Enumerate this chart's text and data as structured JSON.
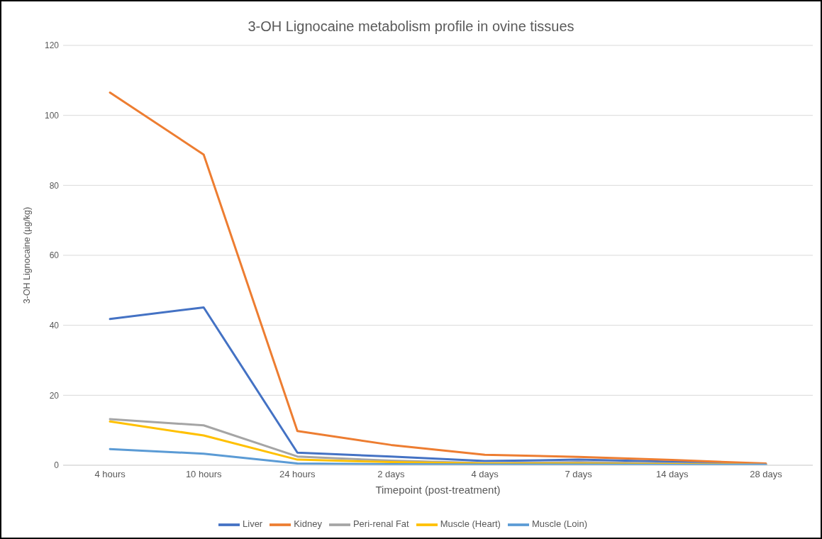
{
  "chart_data": {
    "type": "line",
    "title": "3-OH Lignocaine metabolism profile in ovine tissues",
    "xlabel": "Timepoint (post-treatment)",
    "ylabel": "3-OH Lignocaine (µg/kg)",
    "categories": [
      "4 hours",
      "10 hours",
      "24 hours",
      "2 days",
      "4 days",
      "7 days",
      "14 days",
      "28 days"
    ],
    "series": [
      {
        "name": "Liver",
        "color": "#4472c4",
        "values": [
          41.8,
          45.1,
          3.6,
          2.5,
          1.2,
          1.6,
          1.0,
          0.3
        ]
      },
      {
        "name": "Kidney",
        "color": "#ed7d31",
        "values": [
          106.5,
          88.8,
          9.8,
          5.8,
          3.0,
          2.4,
          1.5,
          0.5
        ]
      },
      {
        "name": "Peri-renal Fat",
        "color": "#a5a5a5",
        "values": [
          13.2,
          11.4,
          2.5,
          1.3,
          0.6,
          0.9,
          0.5,
          0.2
        ]
      },
      {
        "name": "Muscle (Heart)",
        "color": "#ffc000",
        "values": [
          12.5,
          8.5,
          1.6,
          0.9,
          0.5,
          0.5,
          0.3,
          0.1
        ]
      },
      {
        "name": "Muscle (Loin)",
        "color": "#5b9bd5",
        "values": [
          4.6,
          3.3,
          0.5,
          0.3,
          0.2,
          0.2,
          0.1,
          0.1
        ]
      }
    ],
    "ylim": [
      0,
      120
    ],
    "yticks": [
      0,
      20,
      40,
      60,
      80,
      100,
      120
    ],
    "grid": "y",
    "legend": "bottom",
    "marker": "none",
    "line_style": "solid"
  }
}
